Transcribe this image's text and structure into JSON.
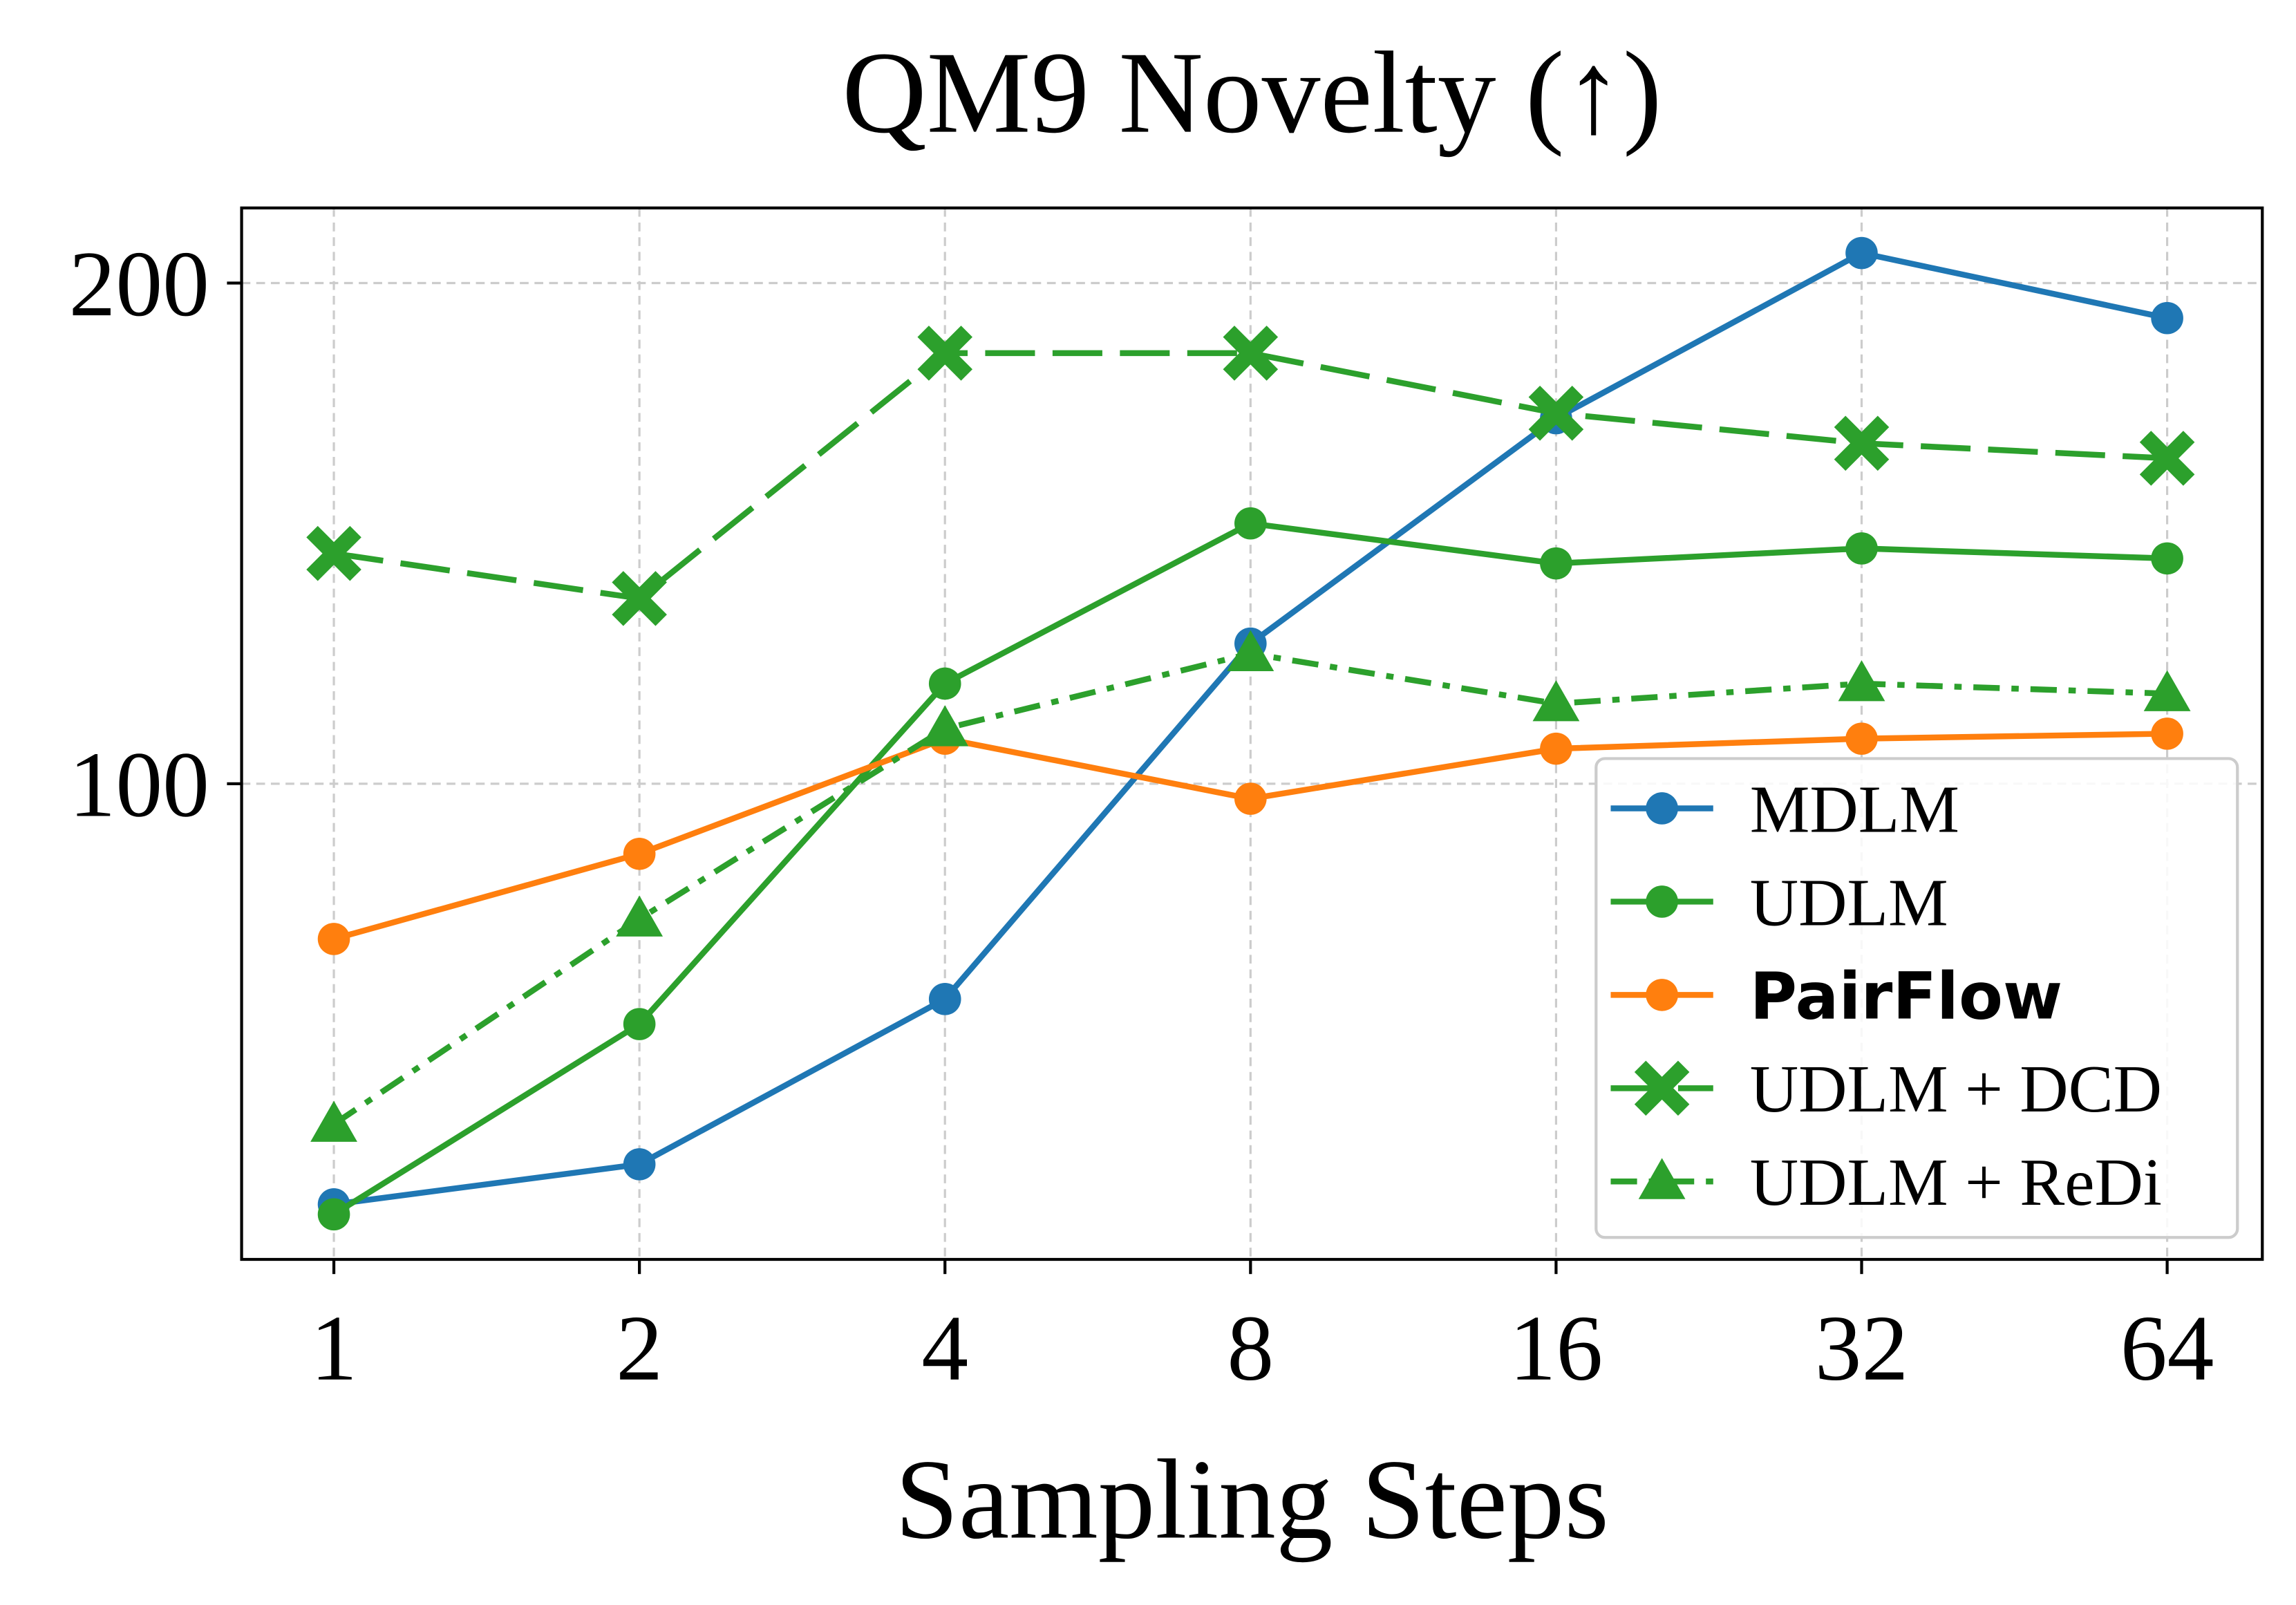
{
  "chart_data": {
    "type": "line",
    "title": "QM9 Novelty (↑)",
    "xlabel": "Sampling Steps",
    "ylabel": "",
    "x": [
      1,
      2,
      4,
      8,
      16,
      32,
      64
    ],
    "x_tick_labels": [
      "1",
      "2",
      "4",
      "8",
      "16",
      "32",
      "64"
    ],
    "x_scale": "log2",
    "y_ticks": [
      100,
      200
    ],
    "y_tick_labels": [
      "100",
      "200"
    ],
    "ylim": [
      5,
      215
    ],
    "grid": true,
    "legend_placement": "lower-right",
    "series": [
      {
        "name": "MDLM",
        "color": "#1f77b4",
        "marker": "circle",
        "linestyle": "solid",
        "bold": false,
        "values": [
          16,
          24,
          57,
          128,
          173,
          206,
          193
        ]
      },
      {
        "name": "UDLM",
        "color": "#2ca02c",
        "marker": "circle",
        "linestyle": "solid",
        "bold": false,
        "values": [
          14,
          52,
          120,
          152,
          144,
          147,
          145
        ]
      },
      {
        "name": "PairFlow",
        "color": "#ff7f0e",
        "marker": "circle",
        "linestyle": "solid",
        "bold": true,
        "values": [
          69,
          86,
          109,
          97,
          107,
          109,
          110
        ]
      },
      {
        "name": "UDLM + DCD",
        "color": "#2ca02c",
        "marker": "x",
        "linestyle": "dashed",
        "bold": false,
        "values": [
          146,
          137,
          186,
          186,
          174,
          168,
          165
        ]
      },
      {
        "name": "UDLM + ReDi",
        "color": "#2ca02c",
        "marker": "triangle",
        "linestyle": "dashdot",
        "bold": false,
        "values": [
          32,
          73,
          111,
          126,
          116,
          120,
          118
        ]
      }
    ]
  }
}
